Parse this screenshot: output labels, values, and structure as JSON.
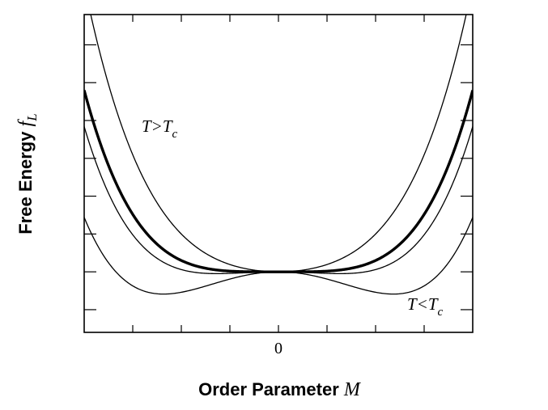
{
  "chart_data": {
    "type": "line",
    "title": "",
    "xlabel": {
      "text": "Order Parameter ",
      "symbol": "M"
    },
    "ylabel": {
      "text": "Free Energy ",
      "symbol": "f",
      "subscript": "L"
    },
    "xlim": [
      -2,
      2
    ],
    "ylim": [
      -0.8,
      3.4
    ],
    "x_tick_labels": [
      {
        "x": 0,
        "label": "0"
      }
    ],
    "x_ticks": [
      -1.5,
      -1,
      -0.5,
      0,
      0.5,
      1,
      1.5
    ],
    "y_ticks": [
      -0.5,
      0,
      0.5,
      1,
      1.5,
      2,
      2.5,
      3
    ],
    "y_tick_labels": "none",
    "model": "f = a*M^2 + b*M^4",
    "b": 0.15,
    "series": [
      {
        "a": 0.35
      },
      {
        "a": 0.0,
        "emphasis": "bold (T = Tc)"
      },
      {
        "a": -0.12
      },
      {
        "a": -0.42
      }
    ],
    "annotations": [
      {
        "text": "T>T",
        "subscript": "c",
        "x": -1.42,
        "y": 2.0
      },
      {
        "text": "T<T",
        "subscript": "c",
        "x": 1.32,
        "y": -0.4
      }
    ]
  }
}
